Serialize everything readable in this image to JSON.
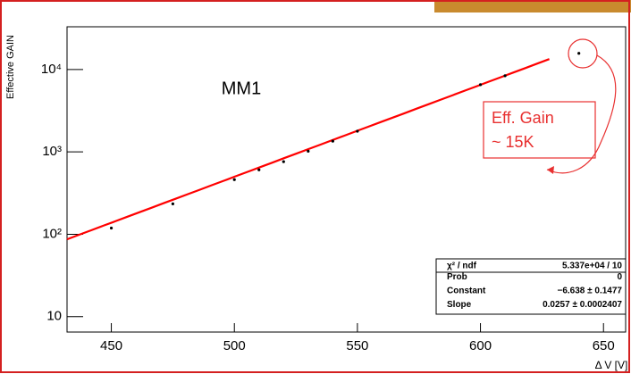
{
  "chart_data": {
    "type": "scatter",
    "y_label": "Effective GAIN",
    "x_label": "Δ V [V]",
    "annotation": "MM1",
    "callout": [
      "Eff. Gain",
      "~ 15K"
    ],
    "x": [
      450,
      475,
      500,
      510,
      520,
      530,
      540,
      550,
      600,
      610,
      640
    ],
    "values": [
      119,
      234,
      460,
      606,
      760,
      1020,
      1350,
      1780,
      6540,
      8400,
      15700
    ],
    "color": "#000000",
    "xlim": [
      432,
      659
    ],
    "ylim": [
      6.5,
      33000
    ],
    "log_y": true,
    "xticks": [
      450,
      500,
      550,
      600,
      650
    ],
    "yticks": [
      10,
      {
        "value": 100,
        "label": "10²"
      },
      {
        "value": 1000,
        "label": "10³"
      },
      {
        "value": 10000,
        "label": "10⁴"
      }
    ],
    "fit": {
      "color": "#ff0000",
      "constant": -6.638,
      "slope": 0.0257,
      "x_range": [
        432,
        628
      ]
    },
    "stats": [
      {
        "name": "χ² / ndf",
        "value": "5.337e+04 / 10"
      },
      {
        "name": "Prob",
        "value": "0"
      },
      {
        "name": "Constant",
        "value": "−6.638 ± 0.1477"
      },
      {
        "name": "Slope",
        "value": "0.0257 ± 0.0002407"
      }
    ]
  }
}
